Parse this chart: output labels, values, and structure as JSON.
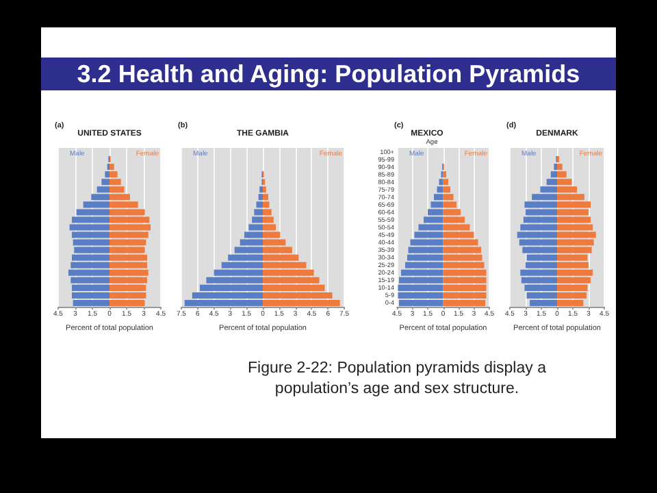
{
  "chart_data": [
    {
      "type": "bar",
      "orientation": "horizontal",
      "stacked": true,
      "title": "UNITED STATES",
      "annotations": [
        "(a)",
        "3.2 Health and Aging: Population Pyramids",
        "Figure 2-22: Population pyramids display a population’s age and sex structure."
      ],
      "xlabel": "Percent of total population",
      "categories": [
        null,
        null,
        null,
        null,
        null,
        null,
        null,
        null,
        null,
        null,
        null,
        null,
        null,
        null,
        null,
        null,
        null,
        null,
        null,
        null,
        null
      ],
      "series": [
        {
          "name": "Male",
          "color": "#5a7ec4",
          "values": [
            0,
            -0.1,
            -0.2,
            -0.4,
            -0.7,
            -1.1,
            -1.6,
            -2.3,
            -2.9,
            -3.3,
            -3.5,
            -3.3,
            -3.2,
            -3.1,
            -3.3,
            -3.4,
            -3.6,
            -3.4,
            -3.3,
            -3.3,
            -3.2
          ]
        },
        {
          "name": "Female",
          "color": "#ee7a3e",
          "values": [
            0,
            0.1,
            0.4,
            0.7,
            1.0,
            1.3,
            1.8,
            2.5,
            3.1,
            3.5,
            3.6,
            3.4,
            3.2,
            3.1,
            3.3,
            3.3,
            3.4,
            3.3,
            3.2,
            3.2,
            3.1
          ]
        }
      ],
      "xlim": [
        -4.5,
        4.5
      ],
      "xticks": [
        {
          "value": -4.5,
          "label": "4.5"
        },
        {
          "value": -3,
          "label": "3"
        },
        {
          "value": -1.5,
          "label": "1.5"
        },
        0,
        1.5,
        3,
        4.5
      ],
      "grid": "x",
      "legend": "top",
      "tick_labels": "x"
    },
    {
      "type": "bar",
      "orientation": "horizontal",
      "stacked": true,
      "title": "THE GAMBIA",
      "annotations": [
        "(b)"
      ],
      "xlabel": "Percent of total population",
      "categories": [
        null,
        null,
        null,
        null,
        null,
        null,
        null,
        null,
        null,
        null,
        null,
        null,
        null,
        null,
        null,
        null,
        null,
        null,
        null,
        null,
        null
      ],
      "series": [
        {
          "name": "Male",
          "color": "#5a7ec4",
          "values": [
            0,
            0,
            0,
            -0.1,
            -0.1,
            -0.3,
            -0.4,
            -0.6,
            -0.8,
            -1.0,
            -1.3,
            -1.7,
            -2.1,
            -2.6,
            -3.2,
            -3.8,
            -4.5,
            -5.2,
            -5.8,
            -6.5,
            -7.2
          ]
        },
        {
          "name": "Female",
          "color": "#ee7a3e",
          "values": [
            0,
            0,
            0,
            0.1,
            0.2,
            0.3,
            0.5,
            0.6,
            0.8,
            1.0,
            1.2,
            1.6,
            2.1,
            2.7,
            3.3,
            4.0,
            4.7,
            5.2,
            5.7,
            6.4,
            7.1
          ]
        }
      ],
      "xlim": [
        -7.5,
        7.5
      ],
      "xticks": [
        {
          "value": -7.5,
          "label": "7.5"
        },
        {
          "value": -6,
          "label": "6"
        },
        {
          "value": -4.5,
          "label": "4.5"
        },
        {
          "value": -3,
          "label": "3"
        },
        {
          "value": -1.5,
          "label": "1.5"
        },
        0,
        1.5,
        3,
        4.5,
        6,
        7.5
      ],
      "grid": "x",
      "legend": "top",
      "tick_labels": "x"
    },
    {
      "type": "bar",
      "orientation": "horizontal",
      "stacked": true,
      "title": "MEXICO",
      "annotations": [
        "(c)"
      ],
      "xlabel": "Percent of total population",
      "ylabel": "Age",
      "categories": [
        "100+",
        "95-99",
        "90-94",
        "85-89",
        "80-84",
        "75-79",
        "70-74",
        "65-69",
        "60-64",
        "55-59",
        "50-54",
        "45-49",
        "40-44",
        "35-39",
        "30-34",
        "25-29",
        "20-24",
        "15-19",
        "10-14",
        "5-9",
        "0-4"
      ],
      "series": [
        {
          "name": "Male",
          "color": "#5a7ec4",
          "values": [
            0,
            0,
            -0.1,
            -0.2,
            -0.4,
            -0.6,
            -0.9,
            -1.2,
            -1.5,
            -1.9,
            -2.4,
            -2.8,
            -3.2,
            -3.4,
            -3.5,
            -3.7,
            -4.1,
            -4.3,
            -4.4,
            -4.4,
            -4.3
          ]
        },
        {
          "name": "Female",
          "color": "#ee7a3e",
          "values": [
            0,
            0,
            0.1,
            0.3,
            0.5,
            0.7,
            1.0,
            1.3,
            1.7,
            2.1,
            2.6,
            3.0,
            3.4,
            3.7,
            3.8,
            4.0,
            4.2,
            4.2,
            4.2,
            4.2,
            4.1
          ]
        }
      ],
      "xlim": [
        -4.5,
        4.5
      ],
      "xticks": [
        {
          "value": -4.5,
          "label": "4.5"
        },
        {
          "value": -3,
          "label": "3"
        },
        {
          "value": -1.5,
          "label": "1.5"
        },
        0,
        1.5,
        3,
        4.5
      ],
      "grid": "x",
      "legend": "top"
    },
    {
      "type": "bar",
      "orientation": "horizontal",
      "stacked": true,
      "title": "DENMARK",
      "annotations": [
        "(d)"
      ],
      "xlabel": "Percent of total population",
      "categories": [
        null,
        null,
        null,
        null,
        null,
        null,
        null,
        null,
        null,
        null,
        null,
        null,
        null,
        null,
        null,
        null,
        null,
        null,
        null,
        null,
        null
      ],
      "series": [
        {
          "name": "Male",
          "color": "#5a7ec4",
          "values": [
            0,
            -0.1,
            -0.3,
            -0.6,
            -1.0,
            -1.6,
            -2.4,
            -3.1,
            -3.0,
            -3.2,
            -3.5,
            -3.8,
            -3.6,
            -3.3,
            -2.9,
            -3.0,
            -3.5,
            -3.4,
            -3.1,
            -2.9,
            -2.6
          ]
        },
        {
          "name": "Female",
          "color": "#ee7a3e",
          "values": [
            0,
            0.2,
            0.5,
            0.9,
            1.4,
            1.9,
            2.6,
            3.2,
            3.0,
            3.2,
            3.4,
            3.7,
            3.5,
            3.3,
            2.9,
            3.0,
            3.4,
            3.2,
            2.9,
            2.8,
            2.5
          ]
        }
      ],
      "xlim": [
        -4.5,
        4.5
      ],
      "xticks": [
        {
          "value": -4.5,
          "label": "4.5"
        },
        {
          "value": -3,
          "label": "3"
        },
        {
          "value": -1.5,
          "label": "1.5"
        },
        0,
        1.5,
        3,
        4.5
      ],
      "grid": "x",
      "legend": "top",
      "tick_labels": "x"
    }
  ]
}
